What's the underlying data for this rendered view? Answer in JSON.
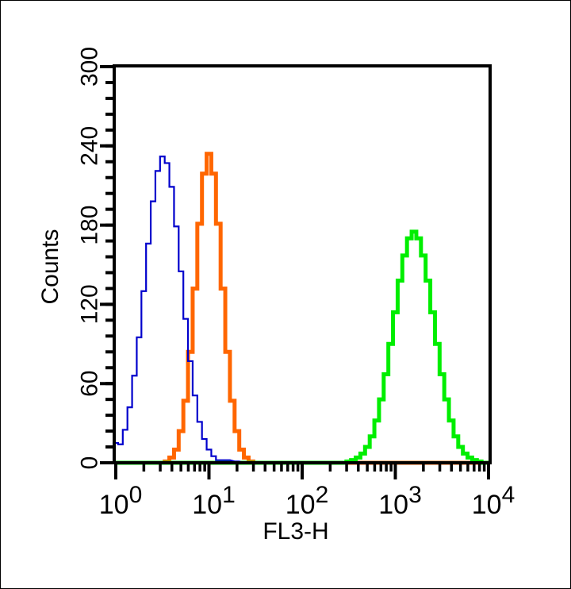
{
  "chart_data": {
    "type": "line",
    "title": "",
    "xlabel": "FL3-H",
    "ylabel": "Counts",
    "xscale": "log",
    "xlim": [
      1,
      10000
    ],
    "ylim": [
      0,
      300
    ],
    "grid": false,
    "yticks": [
      0,
      60,
      120,
      180,
      240,
      300
    ],
    "ytick_labels": [
      "0",
      "60",
      "120",
      "180",
      "240",
      "300"
    ],
    "xticks": [
      {
        "base": "10",
        "exp": "0"
      },
      {
        "base": "10",
        "exp": "1"
      },
      {
        "base": "10",
        "exp": "2"
      },
      {
        "base": "10",
        "exp": "3"
      },
      {
        "base": "10",
        "exp": "4"
      }
    ],
    "series": [
      {
        "name": "blue",
        "color": "#0000cc",
        "log10_x": [
          0.0,
          0.05,
          0.1,
          0.15,
          0.2,
          0.25,
          0.3,
          0.35,
          0.4,
          0.45,
          0.5,
          0.55,
          0.6,
          0.65,
          0.7,
          0.75,
          0.8,
          0.85,
          0.9,
          0.95,
          1.0,
          1.05,
          1.1,
          1.2,
          1.3,
          1.4
        ],
        "counts": [
          15,
          14,
          25,
          42,
          66,
          95,
          130,
          166,
          198,
          221,
          232,
          227,
          209,
          179,
          145,
          109,
          77,
          51,
          31,
          18,
          10,
          5,
          2,
          2,
          1,
          0
        ]
      },
      {
        "name": "orange",
        "color": "#ff6600",
        "log10_x": [
          0.55,
          0.6,
          0.65,
          0.7,
          0.75,
          0.8,
          0.85,
          0.9,
          0.95,
          1.0,
          1.05,
          1.1,
          1.15,
          1.2,
          1.25,
          1.3,
          1.35,
          1.4,
          1.45,
          1.5
        ],
        "counts": [
          1,
          4,
          10,
          24,
          47,
          84,
          132,
          181,
          219,
          234,
          219,
          181,
          132,
          84,
          47,
          24,
          10,
          4,
          1,
          0
        ]
      },
      {
        "name": "green",
        "color": "#00ee00",
        "log10_x": [
          2.45,
          2.5,
          2.55,
          2.6,
          2.65,
          2.7,
          2.75,
          2.8,
          2.85,
          2.9,
          2.95,
          3.0,
          3.05,
          3.1,
          3.15,
          3.2,
          3.25,
          3.3,
          3.35,
          3.4,
          3.45,
          3.5,
          3.55,
          3.6,
          3.65,
          3.7,
          3.75,
          3.8,
          3.85,
          3.9,
          3.95
        ],
        "counts": [
          0,
          1,
          2,
          4,
          7,
          12,
          20,
          32,
          48,
          67,
          90,
          114,
          138,
          157,
          170,
          175,
          170,
          157,
          138,
          114,
          90,
          67,
          48,
          32,
          20,
          12,
          7,
          4,
          2,
          1,
          0
        ]
      }
    ]
  }
}
